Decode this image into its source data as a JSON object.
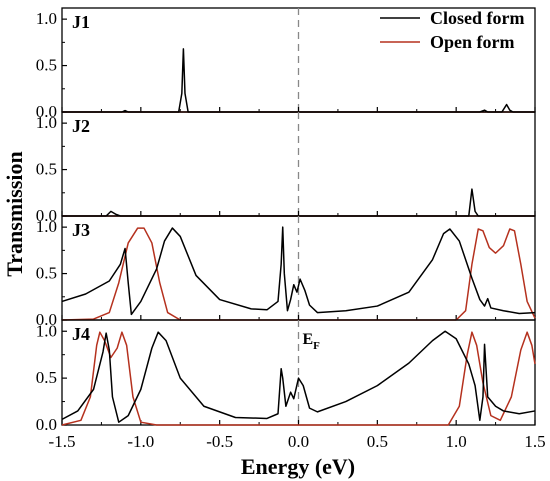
{
  "chart_data": {
    "type": "line",
    "xlabel": "Energy (eV)",
    "ylabel": "Transmission",
    "xlim": [
      -1.5,
      1.5
    ],
    "x_ticks": [
      "-1.5",
      "-1.0",
      "-0.5",
      "0.0",
      "0.5",
      "1.0",
      "1.5"
    ],
    "y_ticks": [
      "0.0",
      "0.5",
      "1.0"
    ],
    "ylim": [
      0,
      1.12
    ],
    "fermi_line": {
      "x": 0,
      "label_main": "E",
      "label_sub": "F"
    },
    "legend": {
      "position": "top-right",
      "entries": [
        {
          "label": "Closed form",
          "color": "#000000"
        },
        {
          "label": "Open form",
          "color": "#b5311e"
        }
      ]
    },
    "panels": [
      {
        "label": "J1",
        "series": [
          {
            "name": "Closed form",
            "color": "#000000",
            "points": [
              [
                -1.5,
                0
              ],
              [
                -1.12,
                0
              ],
              [
                -1.1,
                0.015
              ],
              [
                -1.08,
                0
              ],
              [
                -0.76,
                0
              ],
              [
                -0.74,
                0.2
              ],
              [
                -0.73,
                0.68
              ],
              [
                -0.72,
                0.2
              ],
              [
                -0.7,
                0
              ],
              [
                1.15,
                0
              ],
              [
                1.18,
                0.02
              ],
              [
                1.2,
                0
              ],
              [
                1.29,
                0
              ],
              [
                1.32,
                0.08
              ],
              [
                1.34,
                0.02
              ],
              [
                1.36,
                0
              ],
              [
                1.5,
                0
              ]
            ]
          },
          {
            "name": "Open form",
            "color": "#b5311e",
            "points": [
              [
                -1.5,
                0
              ],
              [
                1.5,
                0
              ]
            ]
          }
        ]
      },
      {
        "label": "J2",
        "series": [
          {
            "name": "Closed form",
            "color": "#000000",
            "points": [
              [
                -1.5,
                0
              ],
              [
                -1.22,
                0
              ],
              [
                -1.19,
                0.05
              ],
              [
                -1.16,
                0.02
              ],
              [
                -1.13,
                0
              ],
              [
                1.08,
                0
              ],
              [
                1.1,
                0.29
              ],
              [
                1.12,
                0.05
              ],
              [
                1.14,
                0
              ],
              [
                1.5,
                0
              ]
            ]
          },
          {
            "name": "Open form",
            "color": "#b5311e",
            "points": [
              [
                -1.5,
                0
              ],
              [
                1.5,
                0
              ]
            ]
          }
        ]
      },
      {
        "label": "J3",
        "series": [
          {
            "name": "Closed form",
            "color": "#000000",
            "points": [
              [
                -1.5,
                0.2
              ],
              [
                -1.35,
                0.28
              ],
              [
                -1.2,
                0.42
              ],
              [
                -1.13,
                0.6
              ],
              [
                -1.1,
                0.77
              ],
              [
                -1.08,
                0.4
              ],
              [
                -1.06,
                0.06
              ],
              [
                -1.0,
                0.2
              ],
              [
                -0.9,
                0.55
              ],
              [
                -0.85,
                0.85
              ],
              [
                -0.8,
                0.99
              ],
              [
                -0.75,
                0.9
              ],
              [
                -0.65,
                0.48
              ],
              [
                -0.5,
                0.22
              ],
              [
                -0.3,
                0.12
              ],
              [
                -0.2,
                0.11
              ],
              [
                -0.13,
                0.2
              ],
              [
                -0.11,
                0.6
              ],
              [
                -0.1,
                1.0
              ],
              [
                -0.09,
                0.5
              ],
              [
                -0.07,
                0.1
              ],
              [
                -0.05,
                0.22
              ],
              [
                -0.03,
                0.38
              ],
              [
                -0.01,
                0.3
              ],
              [
                0.01,
                0.44
              ],
              [
                0.04,
                0.32
              ],
              [
                0.07,
                0.16
              ],
              [
                0.12,
                0.08
              ],
              [
                0.3,
                0.1
              ],
              [
                0.5,
                0.15
              ],
              [
                0.7,
                0.3
              ],
              [
                0.85,
                0.65
              ],
              [
                0.92,
                0.93
              ],
              [
                0.96,
                0.98
              ],
              [
                1.02,
                0.85
              ],
              [
                1.1,
                0.45
              ],
              [
                1.15,
                0.22
              ],
              [
                1.18,
                0.15
              ],
              [
                1.2,
                0.23
              ],
              [
                1.22,
                0.13
              ],
              [
                1.3,
                0.1
              ],
              [
                1.4,
                0.07
              ],
              [
                1.5,
                0.08
              ]
            ]
          },
          {
            "name": "Open form",
            "color": "#b5311e",
            "points": [
              [
                -1.5,
                0
              ],
              [
                -1.3,
                0.01
              ],
              [
                -1.2,
                0.08
              ],
              [
                -1.14,
                0.4
              ],
              [
                -1.08,
                0.83
              ],
              [
                -1.02,
                0.99
              ],
              [
                -0.98,
                0.99
              ],
              [
                -0.93,
                0.83
              ],
              [
                -0.88,
                0.4
              ],
              [
                -0.83,
                0.08
              ],
              [
                -0.75,
                0
              ],
              [
                1.0,
                0
              ],
              [
                1.06,
                0.1
              ],
              [
                1.1,
                0.6
              ],
              [
                1.14,
                0.98
              ],
              [
                1.17,
                0.96
              ],
              [
                1.21,
                0.78
              ],
              [
                1.25,
                0.72
              ],
              [
                1.3,
                0.8
              ],
              [
                1.34,
                0.98
              ],
              [
                1.37,
                0.96
              ],
              [
                1.41,
                0.6
              ],
              [
                1.45,
                0.2
              ],
              [
                1.5,
                0.02
              ]
            ]
          }
        ]
      },
      {
        "label": "J4",
        "series": [
          {
            "name": "Closed form",
            "color": "#000000",
            "points": [
              [
                -1.5,
                0.06
              ],
              [
                -1.4,
                0.15
              ],
              [
                -1.3,
                0.38
              ],
              [
                -1.24,
                0.78
              ],
              [
                -1.22,
                0.98
              ],
              [
                -1.2,
                0.8
              ],
              [
                -1.18,
                0.3
              ],
              [
                -1.14,
                0.03
              ],
              [
                -1.08,
                0.1
              ],
              [
                -1.0,
                0.38
              ],
              [
                -0.93,
                0.82
              ],
              [
                -0.89,
                0.99
              ],
              [
                -0.84,
                0.9
              ],
              [
                -0.75,
                0.5
              ],
              [
                -0.6,
                0.2
              ],
              [
                -0.4,
                0.08
              ],
              [
                -0.2,
                0.07
              ],
              [
                -0.13,
                0.12
              ],
              [
                -0.11,
                0.6
              ],
              [
                -0.1,
                0.5
              ],
              [
                -0.08,
                0.2
              ],
              [
                -0.05,
                0.35
              ],
              [
                -0.03,
                0.28
              ],
              [
                0.0,
                0.5
              ],
              [
                0.03,
                0.42
              ],
              [
                0.07,
                0.18
              ],
              [
                0.12,
                0.14
              ],
              [
                0.3,
                0.25
              ],
              [
                0.5,
                0.42
              ],
              [
                0.7,
                0.66
              ],
              [
                0.85,
                0.9
              ],
              [
                0.93,
                1.0
              ],
              [
                1.0,
                0.92
              ],
              [
                1.08,
                0.65
              ],
              [
                1.12,
                0.42
              ],
              [
                1.15,
                0.05
              ],
              [
                1.17,
                0.3
              ],
              [
                1.18,
                0.86
              ],
              [
                1.2,
                0.3
              ],
              [
                1.25,
                0.2
              ],
              [
                1.3,
                0.15
              ],
              [
                1.4,
                0.12
              ],
              [
                1.5,
                0.15
              ]
            ]
          },
          {
            "name": "Open form",
            "color": "#b5311e",
            "points": [
              [
                -1.5,
                0
              ],
              [
                -1.38,
                0.05
              ],
              [
                -1.32,
                0.3
              ],
              [
                -1.28,
                0.85
              ],
              [
                -1.26,
                0.99
              ],
              [
                -1.23,
                0.9
              ],
              [
                -1.19,
                0.72
              ],
              [
                -1.15,
                0.82
              ],
              [
                -1.12,
                0.99
              ],
              [
                -1.09,
                0.85
              ],
              [
                -1.05,
                0.3
              ],
              [
                -1.0,
                0.03
              ],
              [
                -0.9,
                0
              ],
              [
                0.95,
                0
              ],
              [
                1.02,
                0.2
              ],
              [
                1.07,
                0.75
              ],
              [
                1.1,
                0.99
              ],
              [
                1.13,
                0.85
              ],
              [
                1.17,
                0.45
              ],
              [
                1.22,
                0.1
              ],
              [
                1.28,
                0.05
              ],
              [
                1.35,
                0.3
              ],
              [
                1.41,
                0.8
              ],
              [
                1.45,
                0.99
              ],
              [
                1.48,
                0.85
              ],
              [
                1.5,
                0.65
              ]
            ]
          }
        ]
      }
    ]
  }
}
